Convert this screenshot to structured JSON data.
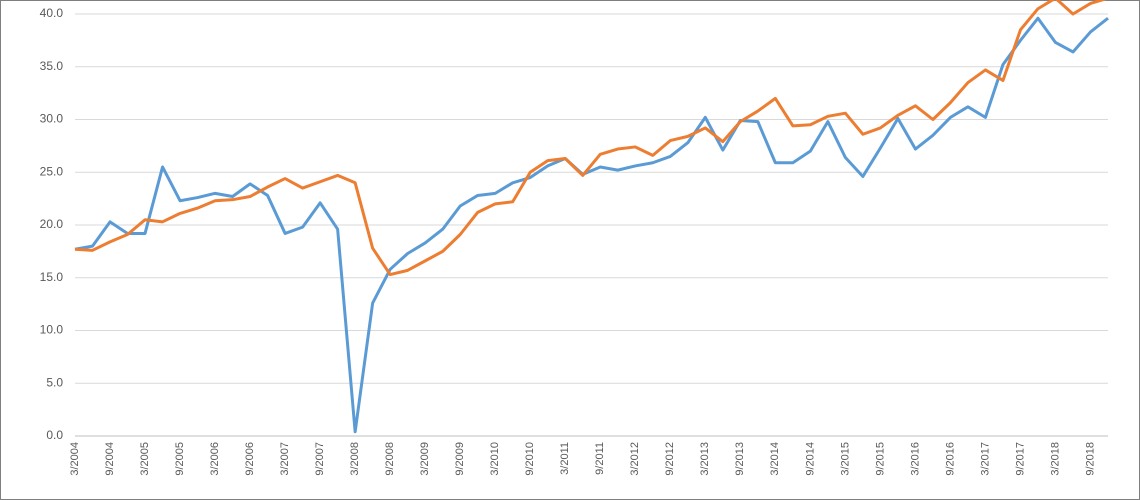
{
  "chart_data": {
    "type": "line",
    "categories": [
      "3/2004",
      null,
      "9/2004",
      null,
      "3/2005",
      null,
      "9/2005",
      null,
      "3/2006",
      null,
      "9/2006",
      null,
      "3/2007",
      null,
      "9/2007",
      null,
      "3/2008",
      null,
      "9/2008",
      null,
      "3/2009",
      null,
      "9/2009",
      null,
      "3/2010",
      null,
      "9/2010",
      null,
      "3/2011",
      null,
      "9/2011",
      null,
      "3/2012",
      null,
      "9/2012",
      null,
      "3/2013",
      null,
      "9/2013",
      null,
      "3/2014",
      null,
      "9/2014",
      null,
      "3/2015",
      null,
      "9/2015",
      null,
      "3/2016",
      null,
      "9/2016",
      null,
      "3/2017",
      null,
      "9/2017",
      null,
      "3/2018",
      null,
      "9/2018",
      null
    ],
    "series": [
      {
        "color": "#5b9bd5",
        "values": [
          17.7,
          18.0,
          20.3,
          19.2,
          19.2,
          25.5,
          22.3,
          22.6,
          23.0,
          22.7,
          23.9,
          22.8,
          19.2,
          19.8,
          22.1,
          19.6,
          0.4,
          12.6,
          15.8,
          17.3,
          18.3,
          19.6,
          21.8,
          22.8,
          23.0,
          24.0,
          24.5,
          25.6,
          26.3,
          24.8,
          25.5,
          25.2,
          25.6,
          25.9,
          26.5,
          27.8,
          30.2,
          27.1,
          29.9,
          29.8,
          25.9,
          25.9,
          27.0,
          29.8,
          26.4,
          24.6,
          27.3,
          30.1,
          27.2,
          28.5,
          30.2,
          31.2,
          30.2,
          35.2,
          37.5,
          39.6,
          37.3,
          36.4,
          38.3,
          39.6
        ]
      },
      {
        "color": "#ed7d31",
        "values": [
          17.7,
          17.6,
          18.4,
          19.1,
          20.5,
          20.3,
          21.1,
          21.6,
          22.3,
          22.4,
          22.7,
          23.6,
          24.4,
          23.5,
          24.1,
          24.7,
          24.0,
          17.8,
          15.3,
          15.7,
          16.6,
          17.5,
          19.1,
          21.2,
          22.0,
          22.2,
          25.0,
          26.1,
          26.3,
          24.7,
          26.7,
          27.2,
          27.4,
          26.6,
          28.0,
          28.4,
          29.2,
          27.9,
          29.8,
          30.8,
          32.0,
          29.4,
          29.5,
          30.3,
          30.6,
          28.6,
          29.2,
          30.4,
          31.3,
          30.0,
          31.6,
          33.5,
          34.7,
          33.7,
          38.5,
          40.5,
          41.5,
          40.0,
          41.0,
          41.5
        ]
      }
    ],
    "ylim": [
      0,
      41.5
    ],
    "yticks": [
      {
        "value": 0,
        "label": "0.0"
      },
      {
        "value": 5,
        "label": "5.0"
      },
      {
        "value": 10,
        "label": "10.0"
      },
      {
        "value": 15,
        "label": "15.0"
      },
      {
        "value": 20,
        "label": "20.0"
      },
      {
        "value": 25,
        "label": "25.0"
      },
      {
        "value": 30,
        "label": "30.0"
      },
      {
        "value": 35,
        "label": "35.0"
      },
      {
        "value": 40,
        "label": "40.0"
      }
    ],
    "grid": true
  }
}
